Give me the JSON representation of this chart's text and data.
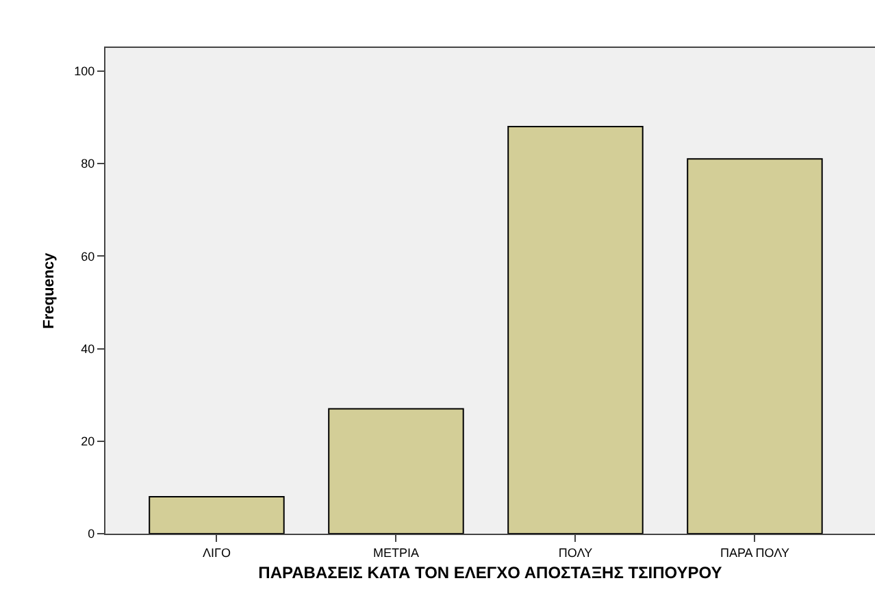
{
  "chart_data": {
    "type": "bar",
    "xlabel": "ΠΑΡΑΒΑΣΕΙΣ ΚΑΤΑ ΤΟΝ ΕΛΕΓΧΟ ΑΠΟΣΤΑΞΗΣ ΤΣΙΠΟΥΡΟΥ",
    "ylabel": "Frequency",
    "categories": [
      "ΛΙΓΟ",
      "ΜΕΤΡΙΑ",
      "ΠΟΛΥ",
      "ΠΑΡΑ ΠΟΛΥ"
    ],
    "values": [
      8,
      27,
      88,
      81
    ],
    "color": "#d3ce97",
    "ylim": [
      0,
      105
    ],
    "yticks": [
      0,
      20,
      40,
      60,
      80,
      100
    ],
    "grid": false,
    "legend": false
  }
}
